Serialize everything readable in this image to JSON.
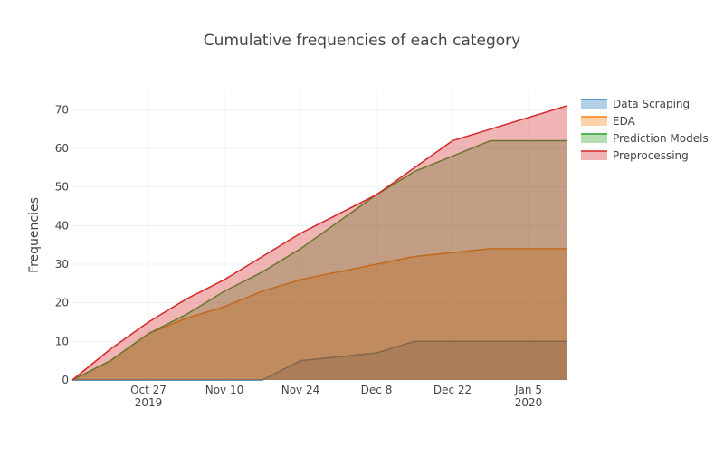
{
  "chart_data": {
    "type": "area",
    "title": "Cumulative frequencies of each category",
    "xlabel": "",
    "ylabel": "Frequencies",
    "x": [
      "2019-10-13",
      "2019-10-20",
      "2019-10-27",
      "2019-11-03",
      "2019-11-10",
      "2019-11-17",
      "2019-11-24",
      "2019-12-01",
      "2019-12-08",
      "2019-12-15",
      "2019-12-22",
      "2019-12-29",
      "2020-01-05",
      "2020-01-12"
    ],
    "xlim": [
      "2019-10-13",
      "2020-01-12"
    ],
    "ylim": [
      0,
      75
    ],
    "x_ticks": [
      {
        "date": "2019-10-27",
        "label": "Oct 27",
        "sublabel": "2019"
      },
      {
        "date": "2019-11-10",
        "label": "Nov 10",
        "sublabel": ""
      },
      {
        "date": "2019-11-24",
        "label": "Nov 24",
        "sublabel": ""
      },
      {
        "date": "2019-12-08",
        "label": "Dec 8",
        "sublabel": ""
      },
      {
        "date": "2019-12-22",
        "label": "Dec 22",
        "sublabel": ""
      },
      {
        "date": "2020-01-05",
        "label": "Jan 5",
        "sublabel": "2020"
      }
    ],
    "y_ticks": [
      0,
      10,
      20,
      30,
      40,
      50,
      60,
      70
    ],
    "grid": true,
    "legend_position": "top-right",
    "series": [
      {
        "name": "Data Scraping",
        "color": "#1f77b4",
        "fill": "rgba(31,119,180,0.35)",
        "values": [
          0,
          0,
          0,
          0,
          0,
          0,
          5,
          6,
          7,
          10,
          10,
          10,
          10,
          10
        ]
      },
      {
        "name": "EDA",
        "color": "#ff7f0e",
        "fill": "rgba(255,127,14,0.35)",
        "values": [
          0,
          5,
          12,
          16,
          19,
          23,
          26,
          28,
          30,
          32,
          33,
          34,
          34,
          34
        ]
      },
      {
        "name": "Prediction Models",
        "color": "#2ca02c",
        "fill": "rgba(44,160,44,0.35)",
        "values": [
          0,
          5,
          12,
          17,
          23,
          28,
          34,
          41,
          48,
          54,
          58,
          62,
          62,
          62
        ]
      },
      {
        "name": "Preprocessing",
        "color": "#d62728",
        "fill": "rgba(214,39,40,0.35)",
        "values": [
          0,
          8,
          15,
          21,
          26,
          32,
          38,
          43,
          48,
          55,
          62,
          65,
          68,
          71
        ]
      }
    ]
  }
}
